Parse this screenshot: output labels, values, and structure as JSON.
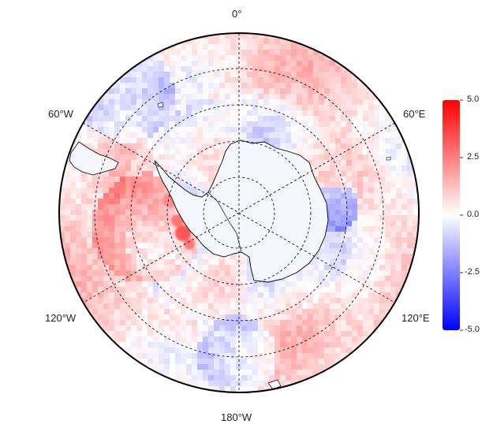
{
  "map": {
    "projection": "south-polar-stereographic",
    "longitude_labels": {
      "top": "0°",
      "upper_left": "60°W",
      "upper_right": "60°E",
      "lower_left": "120°W",
      "lower_right": "120°E",
      "bottom": "180°W"
    },
    "graticule": {
      "meridian_step_deg": 60,
      "parallel_rings": 4,
      "line_style": "dashed"
    },
    "colors": {
      "negative": "#0000ff",
      "zero": "#ffffff",
      "positive": "#ff0000",
      "coastline": "#000000"
    }
  },
  "colorbar": {
    "min": -5.0,
    "max": 5.0,
    "ticks": [
      "5.0",
      "2.5",
      "0.0",
      "-2.5",
      "-5.0"
    ]
  }
}
